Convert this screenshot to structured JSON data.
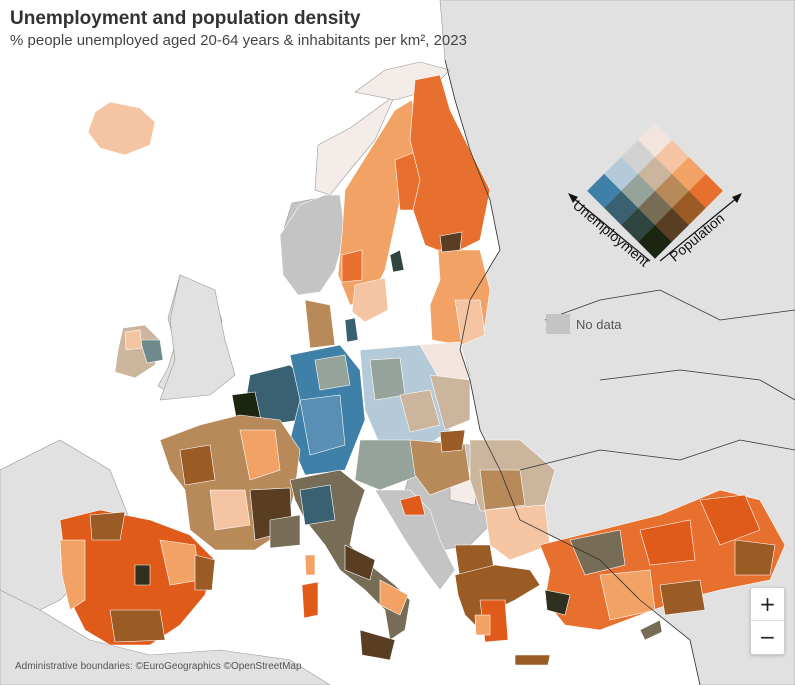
{
  "title": "Unemployment and population density",
  "subtitle": "% people unemployed aged 20-64 years & inhabitants per km², 2023",
  "legend": {
    "axis_unemployment": "Unemployment",
    "axis_population": "Population",
    "no_data_label": "No data",
    "no_data_color": "#c4c4c4",
    "matrix_colors": [
      [
        "#f2e5df",
        "#f5c4a2",
        "#f2a265",
        "#e8702f"
      ],
      [
        "#d2d2d2",
        "#cbb59d",
        "#b88a5a",
        "#9b5b25"
      ],
      [
        "#b4cad8",
        "#95a39a",
        "#776c56",
        "#5a3e23"
      ],
      [
        "#3f80a8",
        "#3a6171",
        "#2f4540",
        "#1c2510"
      ]
    ]
  },
  "zoom": {
    "in_label": "+",
    "out_label": "−"
  },
  "attribution": "Administrative boundaries: ©EuroGeographics ©OpenStreetMap",
  "colors": {
    "sea": "#ffffff",
    "non_eu_land": "#e1e1e1",
    "border": "#333333"
  }
}
